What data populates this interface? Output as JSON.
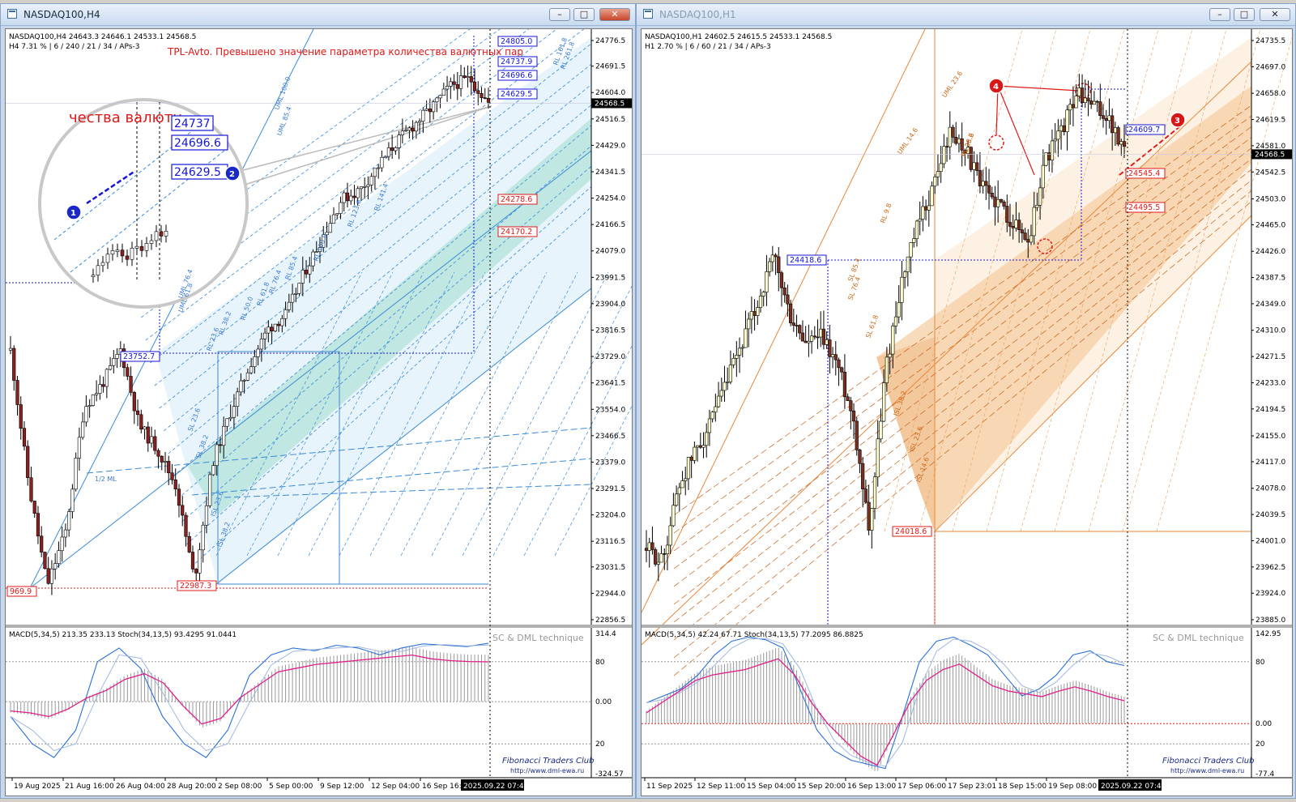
{
  "windows": [
    {
      "title": "NASDAQ100,H4",
      "header_line1": "NASDAQ100,H4  24643.3 24646.1 24533.1 24568.5",
      "header_line2": "H4  7.31 %  |  6 / 240 / 21 / 34 / APs-3",
      "alert_text": "TPL-Avto. Превышено значение параметра количества валютных пар",
      "zoom_text": "чества валютн",
      "zoom_labels": [
        "24737",
        "24696.6",
        "24629.5"
      ],
      "markers": [
        "1",
        "2"
      ],
      "price_axis": [
        "24776.5",
        "24691.5",
        "24604.0",
        "24516.5",
        "24429.0",
        "24341.5",
        "24254.0",
        "24166.5",
        "24079.0",
        "23991.5",
        "23904.0",
        "23816.5",
        "23729.0",
        "23641.5",
        "23554.0",
        "23466.5",
        "23379.0",
        "23291.5",
        "23204.0",
        "23116.5",
        "23031.5",
        "22944.0",
        "22856.5"
      ],
      "current_price": "24568.5",
      "blue_labels": [
        "24805.0",
        "24737.9",
        "24696.6",
        "24629.5",
        "23752.7"
      ],
      "red_labels": [
        "24278.6",
        "24170.2",
        "22987.3",
        "969.9"
      ],
      "fib_labels": [
        "UML 100.0",
        "UML 85.4",
        "UML 76.4",
        "UML 61.8",
        "RL 100.0",
        "RL 85.4",
        "RL 76.4",
        "RL 61.8",
        "RL 50.0",
        "RL 38.2",
        "RL 23.6",
        "RL 123.6",
        "RL 141.4",
        "RL 161.8",
        "RL 261.8",
        "ISL 23.6",
        "ISL 38.2",
        "1/2 ML",
        "SL 23.6",
        "SL 38.2"
      ],
      "time_axis": [
        "19 Aug 2025",
        "21 Aug 16:00",
        "26 Aug 04:00",
        "28 Aug 20:00",
        "2 Sep 08:00",
        "5 Sep 00:00",
        "9 Sep 12:00",
        "12 Sep 04:00",
        "16 Sep 16:00"
      ],
      "time_cursor": "2025.09.22 07:41",
      "sub_header": "MACD(5,34,5) 213.35 233.13  Stoch(34,13,5) 93.4295 91.0441",
      "sub_axis": [
        "314.4",
        "80",
        "0.00",
        "20",
        "-324.57"
      ],
      "watermark": "SC & DML  technique",
      "club": "Fibonacci Traders Club",
      "url": "http://www.dml-ewa.ru"
    },
    {
      "title": "NASDAQ100,H1",
      "header_line1": "NASDAQ100,H1  24602.5 24615.5 24533.1 24568.5",
      "header_line2": "H1  2.70 %  |  6 / 60 / 21 / 34 / APs-3",
      "markers": [
        "4",
        "3"
      ],
      "price_axis": [
        "24735.5",
        "24697.0",
        "24658.0",
        "24619.5",
        "24581.0",
        "24542.5",
        "24503.0",
        "24465.0",
        "24426.0",
        "24387.5",
        "24349.0",
        "24310.0",
        "24271.5",
        "24233.0",
        "24194.5",
        "24155.0",
        "24117.0",
        "24078.0",
        "24039.5",
        "24001.0",
        "23962.5",
        "23924.0",
        "23885.0"
      ],
      "current_price": "24568.5",
      "blue_labels": [
        "24609.7",
        "24418.6"
      ],
      "red_labels": [
        "24545.4",
        "24495.5",
        "24018.6"
      ],
      "fib_labels": [
        "UML 23.6",
        "UML 14.6",
        "RL 23.6",
        "RL 38.2",
        "RL 9.8",
        "SL 85.4",
        "SL 76.4",
        "SL 61.8",
        "ISL 38.2",
        "ISL 23.6",
        "ISL 14.6"
      ],
      "time_axis": [
        "11 Sep 2025",
        "12 Sep 11:00",
        "15 Sep 04:00",
        "15 Sep 20:00",
        "16 Sep 13:00",
        "17 Sep 06:00",
        "17 Sep 23:01",
        "18 Sep 15:00",
        "19 Sep 08:00"
      ],
      "time_cursor": "2025.09.22 07:41",
      "sub_header": "MACD(5,34,5) 42.24 67.71  Stoch(34,13,5) 77.2095 86.8825",
      "sub_axis": [
        "142.95",
        "80",
        "0.00",
        "20",
        "-77.4"
      ],
      "watermark": "SC & DML  technique",
      "club": "Fibonacci Traders Club",
      "url": "http://www.dml-ewa.ru"
    }
  ],
  "chart_data": [
    {
      "type": "candlestick",
      "title": "NASDAQ100,H4",
      "ylim": [
        22856.5,
        24776.5
      ],
      "categories": [
        "19 Aug 2025",
        "21 Aug 16:00",
        "26 Aug 04:00",
        "28 Aug 20:00",
        "2 Sep 08:00",
        "5 Sep 00:00",
        "9 Sep 12:00",
        "12 Sep 04:00",
        "16 Sep 16:00",
        "2025.09.22 07:41"
      ],
      "close_path": [
        23750,
        23300,
        22969.9,
        23150,
        23560,
        23640,
        23752.7,
        23500,
        23420,
        23300,
        22987.3,
        23380,
        23550,
        23700,
        23820,
        23870,
        24010,
        24130,
        24250,
        24280,
        24360,
        24440,
        24500,
        24560,
        24629.5,
        24650,
        24568.5
      ],
      "macd": [
        -50,
        -60,
        -80,
        -40,
        20,
        60,
        120,
        150,
        100,
        -20,
        -120,
        -90,
        20,
        90,
        160,
        180,
        200,
        210,
        220,
        230,
        240,
        250,
        230,
        220,
        215,
        213.35
      ],
      "stoch": [
        40,
        20,
        10,
        30,
        80,
        90,
        75,
        40,
        20,
        10,
        30,
        70,
        85,
        90,
        88,
        92,
        90,
        85,
        90,
        93,
        92,
        91,
        93.43
      ]
    },
    {
      "type": "candlestick",
      "title": "NASDAQ100,H1",
      "ylim": [
        23885.0,
        24735.5
      ],
      "categories": [
        "11 Sep 2025",
        "12 Sep 11:00",
        "15 Sep 04:00",
        "15 Sep 20:00",
        "16 Sep 13:00",
        "17 Sep 06:00",
        "17 Sep 23:01",
        "18 Sep 15:00",
        "19 Sep 08:00",
        "2025.09.22 07:41"
      ],
      "close_path": [
        23990,
        23970,
        24080,
        24130,
        24170,
        24230,
        24290,
        24350,
        24418.6,
        24330,
        24290,
        24300,
        24260,
        24180,
        24018.6,
        24250,
        24380,
        24460,
        24520,
        24600,
        24580,
        24520,
        24500,
        24470,
        24440,
        24560,
        24600,
        24658,
        24640,
        24620,
        24568.5
      ],
      "macd": [
        20,
        40,
        60,
        80,
        90,
        95,
        100,
        110,
        120,
        90,
        40,
        0,
        -30,
        -60,
        -77,
        -20,
        40,
        80,
        100,
        110,
        90,
        70,
        60,
        55,
        50,
        60,
        68,
        60,
        50,
        42.24
      ],
      "stoch": [
        50,
        55,
        60,
        70,
        85,
        95,
        98,
        96,
        90,
        60,
        30,
        15,
        8,
        5,
        2,
        40,
        80,
        95,
        98,
        92,
        85,
        70,
        55,
        60,
        70,
        85,
        88,
        80,
        77.21
      ]
    }
  ]
}
